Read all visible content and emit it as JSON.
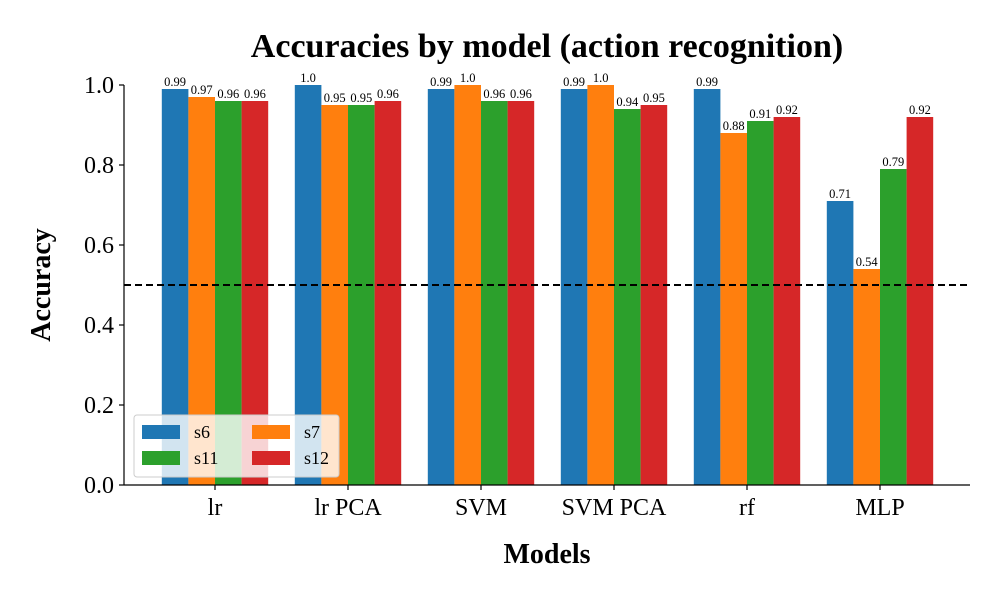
{
  "chart_data": {
    "type": "bar",
    "title": "Accuracies by model (action recognition)",
    "xlabel": "Models",
    "ylabel": "Accuracy",
    "categories": [
      "lr",
      "lr PCA",
      "SVM",
      "SVM PCA",
      "rf",
      "MLP"
    ],
    "series": [
      {
        "name": "s6",
        "color": "#1f77b4",
        "values": [
          0.99,
          1.0,
          0.99,
          0.99,
          0.99,
          0.71
        ]
      },
      {
        "name": "s7",
        "color": "#ff7f0e",
        "values": [
          0.97,
          0.95,
          1.0,
          1.0,
          0.88,
          0.54
        ]
      },
      {
        "name": "s11",
        "color": "#2ca02c",
        "values": [
          0.96,
          0.95,
          0.96,
          0.94,
          0.91,
          0.79
        ]
      },
      {
        "name": "s12",
        "color": "#d62728",
        "values": [
          0.96,
          0.96,
          0.96,
          0.95,
          0.92,
          0.92
        ]
      }
    ],
    "data_labels": [
      [
        "0.99",
        "0.97",
        "0.96",
        "0.96"
      ],
      [
        "1.0",
        "0.95",
        "0.95",
        "0.96"
      ],
      [
        "0.99",
        "1.0",
        "0.96",
        "0.96"
      ],
      [
        "0.99",
        "1.0",
        "0.94",
        "0.95"
      ],
      [
        "0.99",
        "0.88",
        "0.91",
        "0.92"
      ],
      [
        "0.71",
        "0.54",
        "0.79",
        "0.92"
      ]
    ],
    "ylim": [
      0,
      1.0
    ],
    "yticks": [
      0.0,
      0.2,
      0.4,
      0.6,
      0.8,
      1.0
    ],
    "ytick_labels": [
      "0.0",
      "0.2",
      "0.4",
      "0.6",
      "0.8",
      "1.0"
    ],
    "reference_line": {
      "y": 0.5,
      "style": "dashed",
      "color": "#000000"
    },
    "grid": false,
    "legend": {
      "placement": "lower-left",
      "columns": 2
    }
  }
}
